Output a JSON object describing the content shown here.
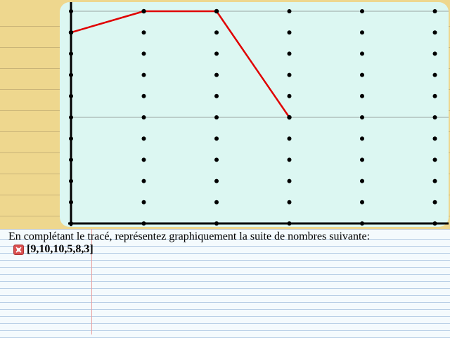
{
  "instruction": "En complétant le tracé, représentez graphiquement la suite de nombres suivante:",
  "sequence_text": "[9,10,10,5,8,3]",
  "status_icon": "wrong-answer-icon",
  "colors": {
    "trace": "#e00000",
    "board": "#dcf7f2",
    "pad": "#eed78e"
  },
  "chart_data": {
    "type": "line",
    "target_sequence": [
      9,
      10,
      10,
      5,
      8,
      3
    ],
    "x": [
      0,
      1,
      2,
      3,
      4,
      5
    ],
    "ylim": [
      0,
      10
    ],
    "drawn_trace": [
      {
        "x": 0,
        "y": 9
      },
      {
        "x": 1,
        "y": 10
      },
      {
        "x": 2,
        "y": 10
      },
      {
        "x": 3,
        "y": 5
      }
    ],
    "grid": "dots",
    "reference_lines_y": [
      5,
      10
    ]
  }
}
